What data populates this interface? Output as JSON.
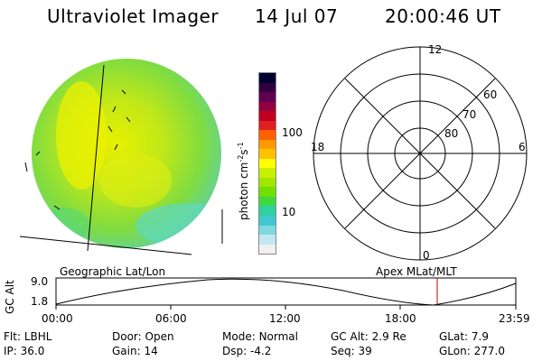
{
  "header": {
    "title": "Ultraviolet Imager",
    "date": "14 Jul 07",
    "time": "20:00:46 UT"
  },
  "colorbar": {
    "label": "photon cm",
    "label_sup1": "-2",
    "label_mid": "s",
    "label_sup2": "-1",
    "ticks": [
      "100",
      "10"
    ],
    "colors": [
      "#000030",
      "#300040",
      "#600050",
      "#900040",
      "#c00020",
      "#e02020",
      "#ff6000",
      "#ff9900",
      "#ffc000",
      "#ffff00",
      "#c8f000",
      "#a0e800",
      "#70e000",
      "#40d840",
      "#30d0a0",
      "#40c8d0",
      "#80d8e0",
      "#c0e8f0",
      "#f0f0f0"
    ]
  },
  "polar": {
    "labels": {
      "top": "12",
      "left": "18",
      "right": "6",
      "bottom": "0"
    },
    "rings": [
      "60",
      "70",
      "80"
    ]
  },
  "panel": {
    "left_label": "Geographic Lat/Lon",
    "right_label": "Apex MLat/MLT",
    "yaxis_label": "GC Alt",
    "ymax": "9.0",
    "ymin": "1.8",
    "xticks": [
      "00:00",
      "06:00",
      "12:00",
      "18:00",
      "23:59"
    ]
  },
  "status": {
    "row1": [
      {
        "k": "Flt:",
        "v": "LBHL"
      },
      {
        "k": "Door:",
        "v": "Open"
      },
      {
        "k": "Mode:",
        "v": "Normal"
      },
      {
        "k": "GC Alt:",
        "v": "2.9 Re"
      },
      {
        "k": "GLat:",
        "v": "7.9"
      }
    ],
    "row2": [
      {
        "k": "IP:",
        "v": "36.0"
      },
      {
        "k": "Gain:",
        "v": "14"
      },
      {
        "k": "Dsp:",
        "v": "-4.2"
      },
      {
        "k": "Seq:",
        "v": "39"
      },
      {
        "k": "GLon:",
        "v": "277.0"
      }
    ]
  }
}
